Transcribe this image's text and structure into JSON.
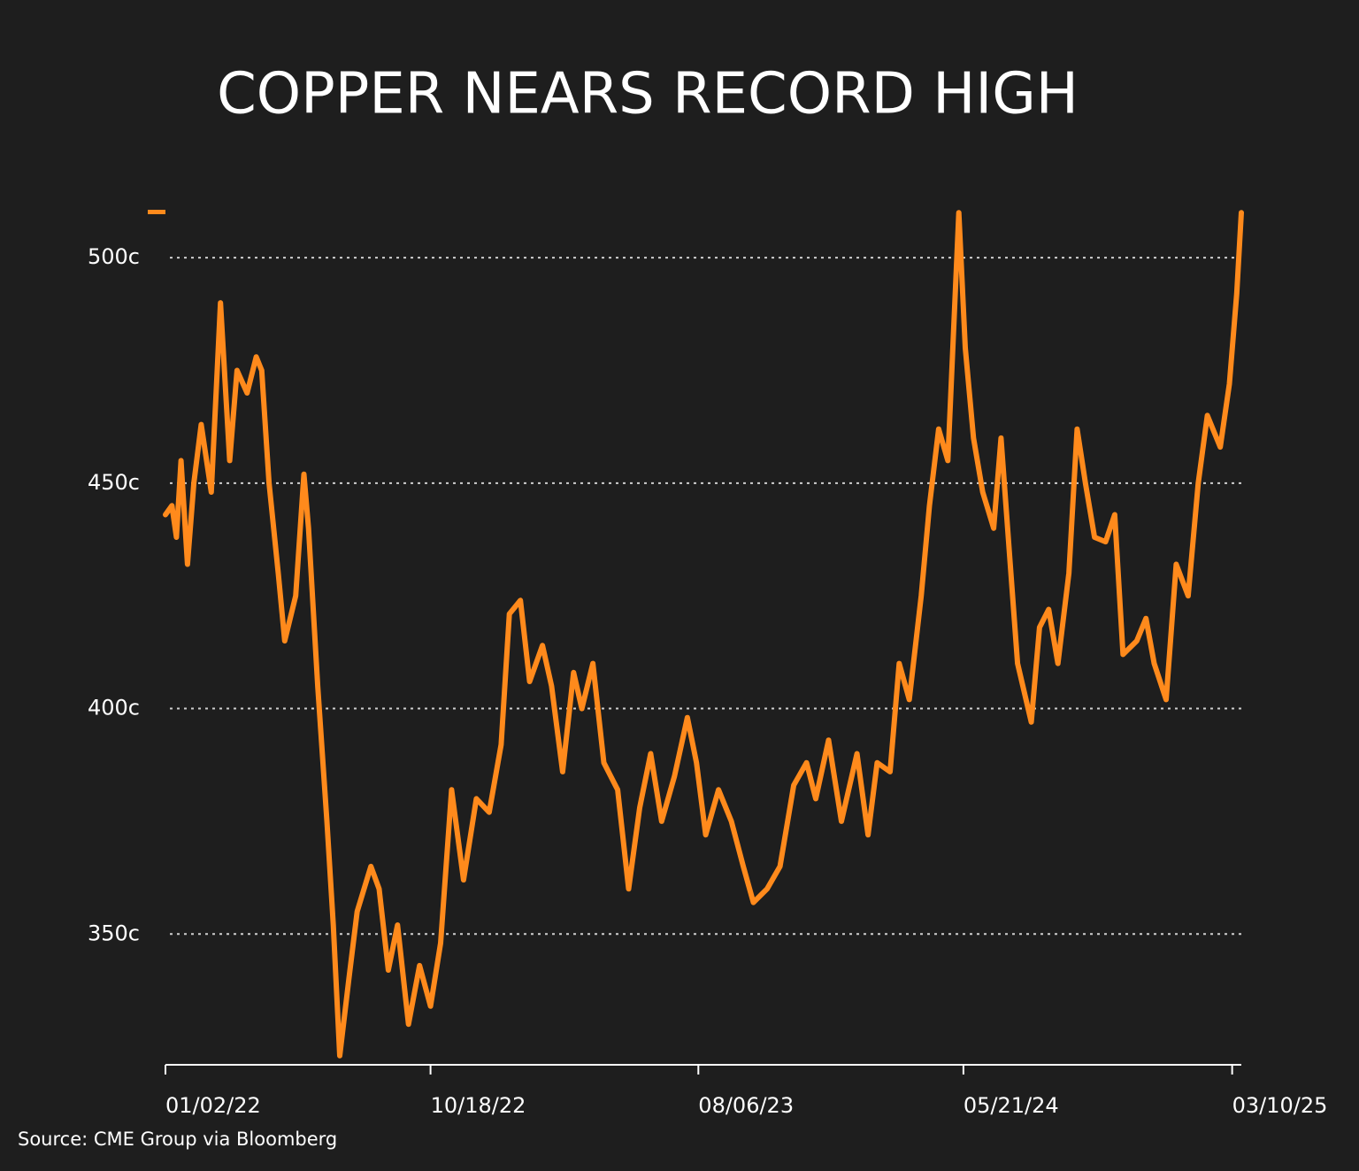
{
  "chart_data": {
    "type": "line",
    "title": "COPPER NEARS RECORD HIGH",
    "source": "Source: CME Group via Bloomberg",
    "color": "#ff8a1c",
    "grid": true,
    "x": [
      "2022-01-02",
      "2022-01-09",
      "2022-01-14",
      "2022-01-19",
      "2022-01-26",
      "2022-02-02",
      "2022-02-10",
      "2022-02-21",
      "2022-03-03",
      "2022-03-13",
      "2022-03-21",
      "2022-04-01",
      "2022-04-11",
      "2022-04-17",
      "2022-04-25",
      "2022-05-05",
      "2022-05-12",
      "2022-05-24",
      "2022-06-02",
      "2022-06-07",
      "2022-06-17",
      "2022-06-27",
      "2022-07-04",
      "2022-07-11",
      "2022-07-21",
      "2022-07-30",
      "2022-08-14",
      "2022-08-23",
      "2022-09-02",
      "2022-09-12",
      "2022-09-24",
      "2022-10-06",
      "2022-10-18",
      "2022-10-29",
      "2022-11-10",
      "2022-11-23",
      "2022-12-07",
      "2022-12-21",
      "2023-01-03",
      "2023-01-12",
      "2023-01-24",
      "2023-02-03",
      "2023-02-17",
      "2023-02-27",
      "2023-03-11",
      "2023-03-23",
      "2023-04-01",
      "2023-04-13",
      "2023-04-25",
      "2023-05-10",
      "2023-05-22",
      "2023-06-03",
      "2023-06-15",
      "2023-06-27",
      "2023-07-11",
      "2023-07-25",
      "2023-08-04",
      "2023-08-14",
      "2023-08-28",
      "2023-09-11",
      "2023-09-24",
      "2023-10-05",
      "2023-10-20",
      "2023-11-03",
      "2023-11-18",
      "2023-12-02",
      "2023-12-12",
      "2023-12-26",
      "2024-01-09",
      "2024-01-26",
      "2024-02-07",
      "2024-02-17",
      "2024-03-02",
      "2024-03-12",
      "2024-03-23",
      "2024-04-05",
      "2024-04-14",
      "2024-04-24",
      "2024-05-04",
      "2024-05-16",
      "2024-05-23",
      "2024-06-01",
      "2024-06-11",
      "2024-06-23",
      "2024-07-01",
      "2024-07-10",
      "2024-07-19",
      "2024-08-03",
      "2024-08-12",
      "2024-08-22",
      "2024-09-01",
      "2024-09-13",
      "2024-09-22",
      "2024-10-01",
      "2024-10-11",
      "2024-10-23",
      "2024-11-02",
      "2024-11-11",
      "2024-11-26",
      "2024-12-06",
      "2024-12-15",
      "2024-12-28",
      "2025-01-08",
      "2025-01-21",
      "2025-02-01",
      "2025-02-11",
      "2025-02-25",
      "2025-03-07",
      "2025-03-15",
      "2025-03-20"
    ],
    "values": [
      443,
      445,
      438,
      455,
      432,
      450,
      463,
      448,
      490,
      455,
      475,
      470,
      478,
      475,
      450,
      430,
      415,
      425,
      452,
      440,
      405,
      375,
      352,
      323,
      340,
      355,
      365,
      360,
      342,
      352,
      330,
      343,
      334,
      348,
      382,
      362,
      380,
      377,
      392,
      421,
      424,
      406,
      414,
      405,
      386,
      408,
      400,
      410,
      388,
      382,
      360,
      378,
      390,
      375,
      385,
      398,
      388,
      372,
      382,
      375,
      365,
      357,
      360,
      365,
      383,
      388,
      380,
      393,
      375,
      390,
      372,
      388,
      386,
      410,
      402,
      425,
      445,
      462,
      455,
      510,
      480,
      460,
      448,
      440,
      460,
      435,
      410,
      397,
      418,
      422,
      410,
      430,
      462,
      450,
      438,
      437,
      443,
      412,
      415,
      420,
      410,
      402,
      432,
      425,
      450,
      465,
      458,
      472,
      492,
      510
    ],
    "xlim": [
      "2022-01-02",
      "2025-03-20"
    ],
    "xticks": [
      {
        "value": "2022-01-02",
        "label": "01/02/22"
      },
      {
        "value": "2022-10-18",
        "label": "10/18/22"
      },
      {
        "value": "2023-08-06",
        "label": "08/06/23"
      },
      {
        "value": "2024-05-21",
        "label": "05/21/24"
      },
      {
        "value": "2025-03-10",
        "label": "03/10/25"
      }
    ],
    "ylim": [
      321,
      512
    ],
    "yticks": [
      {
        "value": 350,
        "label": "350c"
      },
      {
        "value": 400,
        "label": "400c"
      },
      {
        "value": 450,
        "label": "450c"
      },
      {
        "value": 500,
        "label": "500c"
      }
    ]
  }
}
